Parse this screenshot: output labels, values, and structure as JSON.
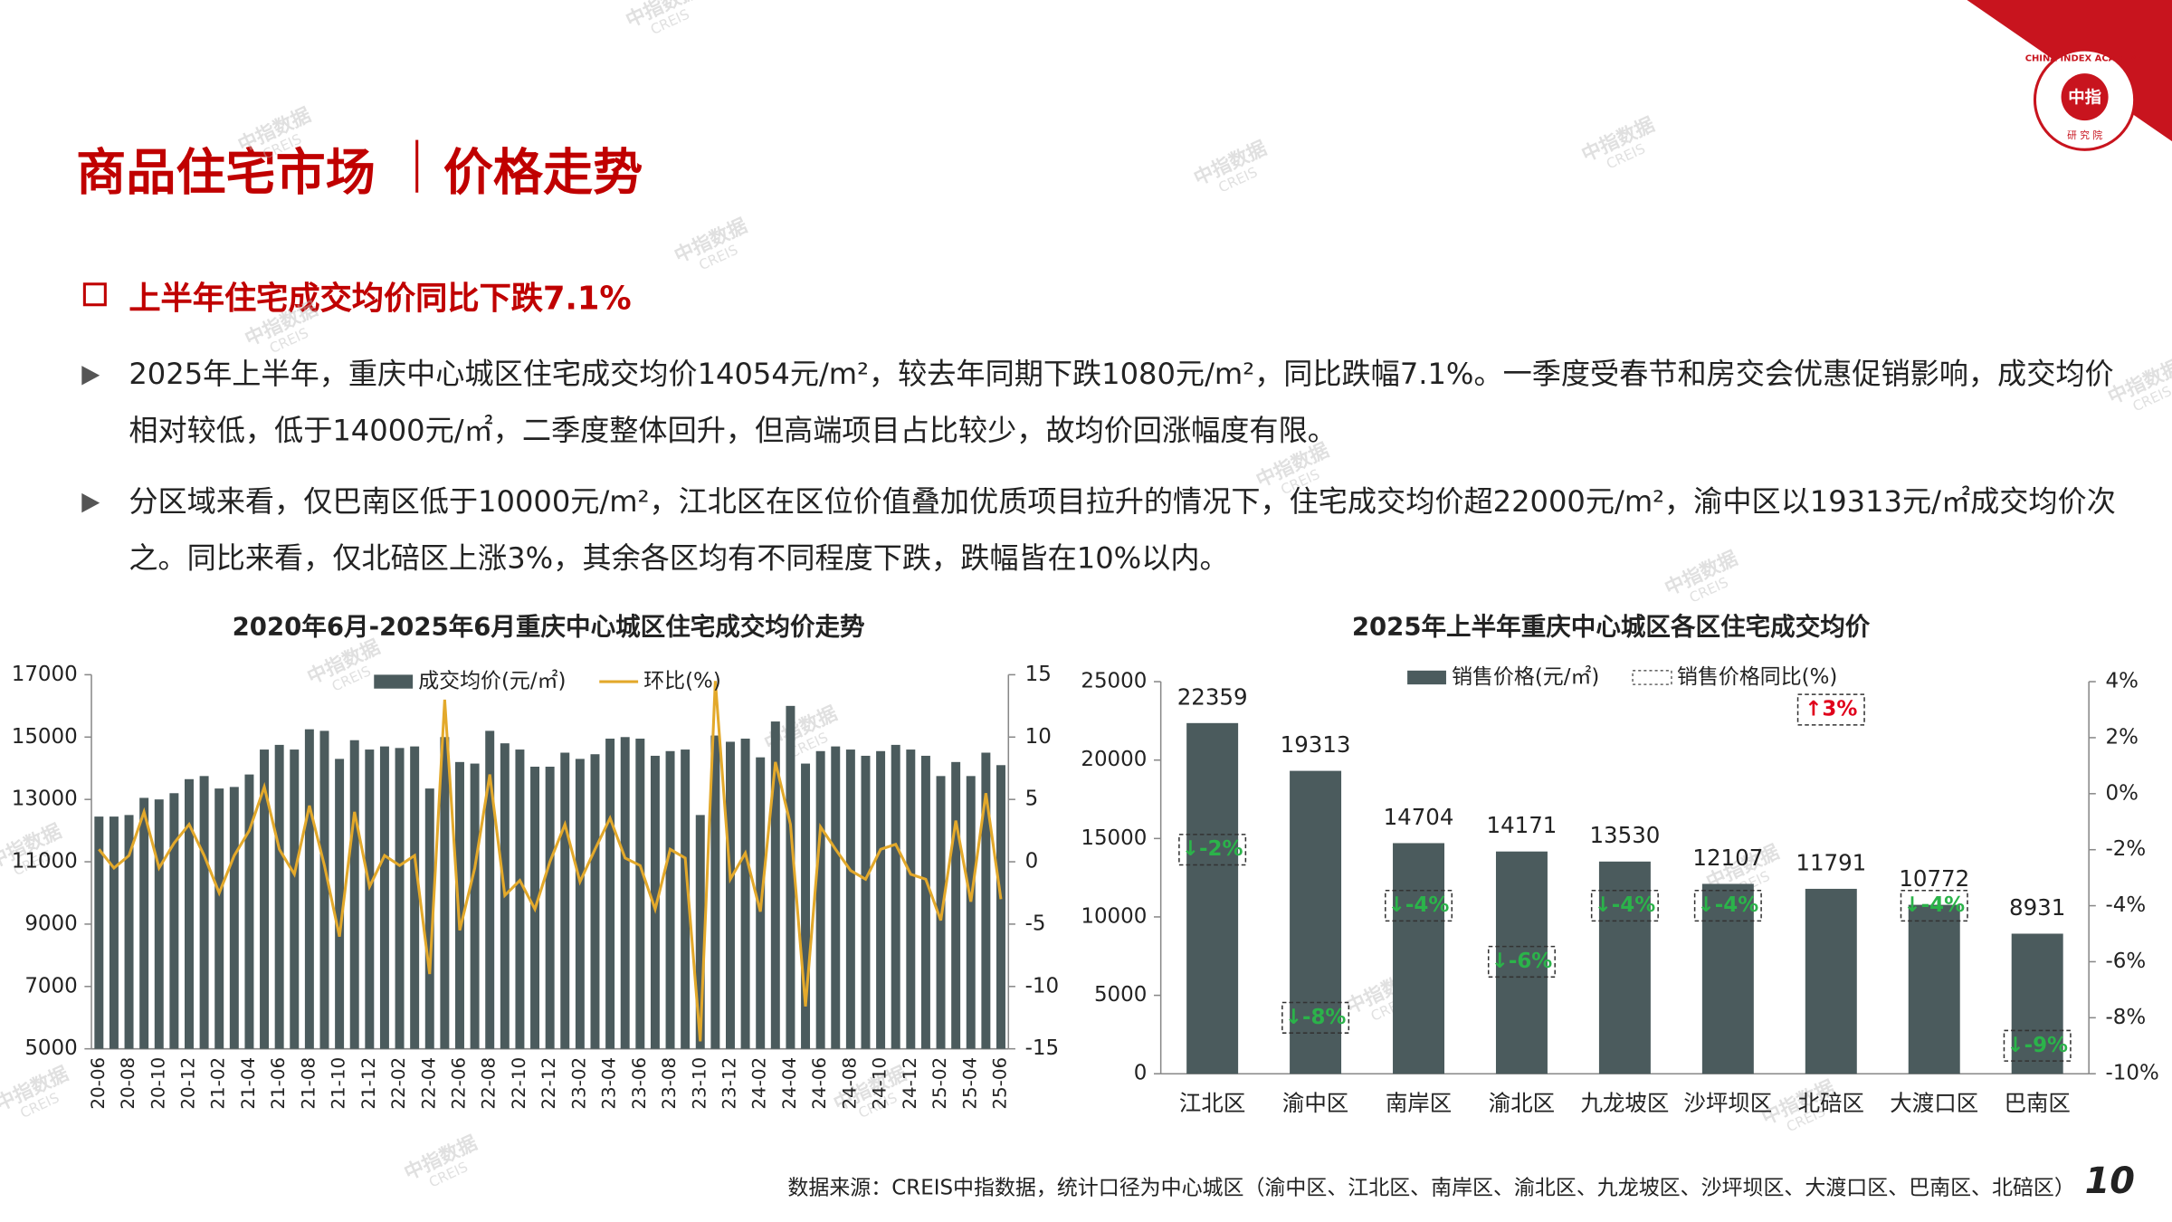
{
  "header": {
    "title": "商品住宅市场",
    "subtitle": "价格走势"
  },
  "section": {
    "heading": "上半年住宅成交均价同比下跌7.1%",
    "bullets": [
      "2025年上半年，重庆中心城区住宅成交均价14054元/m²，较去年同期下跌1080元/m²，同比跌幅7.1%。一季度受春节和房交会优惠促销影响，成交均价相对较低，低于14000元/㎡，二季度整体回升，但高端项目占比较少，故均价回涨幅度有限。",
      "分区域来看，仅巴南区低于10000元/m²，江北区在区位价值叠加优质项目拉升的情况下，住宅成交均价超22000元/m²，渝中区以19313元/㎡成交均价次之。同比来看，仅北碚区上涨3%，其余各区均有不同程度下跌，跌幅皆在10%以内。"
    ]
  },
  "chart_data": [
    {
      "type": "bar",
      "title": "2020年6月-2025年6月重庆中心城区住宅成交均价走势",
      "categories": [
        "20-06",
        null,
        "20-08",
        null,
        "20-10",
        null,
        "20-12",
        null,
        "21-02",
        null,
        "21-04",
        null,
        "21-06",
        null,
        "21-08",
        null,
        "21-10",
        null,
        "21-12",
        null,
        "22-02",
        null,
        "22-04",
        null,
        "22-06",
        null,
        "22-08",
        null,
        "22-10",
        null,
        "22-12",
        null,
        "23-02",
        null,
        "23-04",
        null,
        "23-06",
        null,
        "23-08",
        null,
        "23-10",
        null,
        "23-12",
        null,
        "24-02",
        null,
        "24-04",
        null,
        "24-06",
        null,
        "24-08",
        null,
        "24-10",
        null,
        "24-12",
        null,
        "25-02",
        null,
        "25-04",
        null,
        "25-06"
      ],
      "series": [
        {
          "name": "成交均价(元/㎡)",
          "color": "#4b5b5d",
          "values": [
            12450,
            12450,
            12500,
            13050,
            13000,
            13200,
            13650,
            13750,
            13350,
            13400,
            13800,
            14600,
            14750,
            14600,
            15250,
            15200,
            14300,
            14900,
            14600,
            14700,
            14650,
            14700,
            13350,
            15000,
            14200,
            14150,
            15200,
            14800,
            14600,
            14050,
            14050,
            14500,
            14300,
            14450,
            14950,
            15000,
            14950,
            14400,
            14550,
            14600,
            12500,
            15050,
            14850,
            14950,
            14350,
            15500,
            16000,
            14150,
            14550,
            14700,
            14600,
            14400,
            14550,
            14750,
            14600,
            14400,
            13750,
            14200,
            13750,
            14500,
            14100
          ]
        },
        {
          "name": "环比(%)",
          "type": "line",
          "axis": "y2",
          "color": "#e3a92b",
          "values": [
            1,
            -0.5,
            0.5,
            4,
            -0.5,
            1.5,
            3,
            0.5,
            -2.5,
            0.5,
            2.5,
            6,
            1,
            -1,
            4.5,
            -0.3,
            -6,
            4,
            -2,
            0.5,
            -0.3,
            0.5,
            -9,
            13,
            -5.5,
            -0.5,
            7,
            -2.7,
            -1.5,
            -3.8,
            0,
            3,
            -1.6,
            1,
            3.5,
            0.3,
            -0.3,
            -3.8,
            1,
            0.3,
            -14.4,
            14.5,
            -1.4,
            0.7,
            -4,
            8,
            3,
            -11.6,
            2.8,
            1,
            -0.7,
            -1.4,
            1,
            1.4,
            -1,
            -1.4,
            -4.7,
            3.3,
            -3.2,
            5.5,
            -3
          ]
        }
      ],
      "ylim": [
        5000,
        17000
      ],
      "yticks": [
        5000,
        7000,
        9000,
        11000,
        13000,
        15000,
        17000
      ],
      "y2lim": [
        -15,
        15
      ],
      "y2ticks": [
        -15,
        -10,
        -5,
        0,
        5,
        10,
        15
      ],
      "legend": "top"
    },
    {
      "type": "bar",
      "title": "2025年上半年重庆中心城区各区住宅成交均价",
      "categories": [
        "江北区",
        "渝中区",
        "南岸区",
        "渝北区",
        "九龙坡区",
        "沙坪坝区",
        "北碚区",
        "大渡口区",
        "巴南区"
      ],
      "series": [
        {
          "name": "销售价格(元/㎡)",
          "color": "#4b5b5d",
          "values": [
            22359,
            19313,
            14704,
            14171,
            13530,
            12107,
            11791,
            10772,
            8931
          ]
        },
        {
          "name": "销售价格同比(%)",
          "type": "label",
          "axis": "y2",
          "color": "#2bb34a",
          "up_color": "#e0001b",
          "values": [
            -2,
            -8,
            -4,
            -6,
            -4,
            -4,
            3,
            -4,
            -9
          ],
          "value_labels": [
            "↓-2%",
            "↓-8%",
            "↓-4%",
            "↓-6%",
            "↓-4%",
            "↓-4%",
            "↑3%",
            "↓-4%",
            "↓-9%"
          ]
        }
      ],
      "ylim": [
        0,
        25000
      ],
      "yticks": [
        0,
        5000,
        10000,
        15000,
        20000,
        25000
      ],
      "y2lim": [
        -10,
        4
      ],
      "y2ticks": [
        {
          "value": -10,
          "label": "-10%"
        },
        {
          "value": -8,
          "label": "-8%"
        },
        {
          "value": -6,
          "label": "-6%"
        },
        {
          "value": -4,
          "label": "-4%"
        },
        {
          "value": -2,
          "label": "-2%"
        },
        {
          "value": 0,
          "label": "0%"
        },
        {
          "value": 2,
          "label": "2%"
        },
        {
          "value": 4,
          "label": "4%"
        }
      ],
      "data_labels": true,
      "legend": "top"
    }
  ],
  "footer": {
    "source": "数据来源：CREIS中指数据，统计口径为中心城区（渝中区、江北区、南岸区、渝北区、九龙坡区、沙坪坝区、大渡口区、巴南区、北碚区）",
    "page": "10"
  },
  "logo": {
    "mark": "中指",
    "ring": "CHINA INDEX ACADEMY",
    "sub": "研 究 院"
  },
  "watermark": {
    "text": "中指数据",
    "sub": "CREIS"
  }
}
